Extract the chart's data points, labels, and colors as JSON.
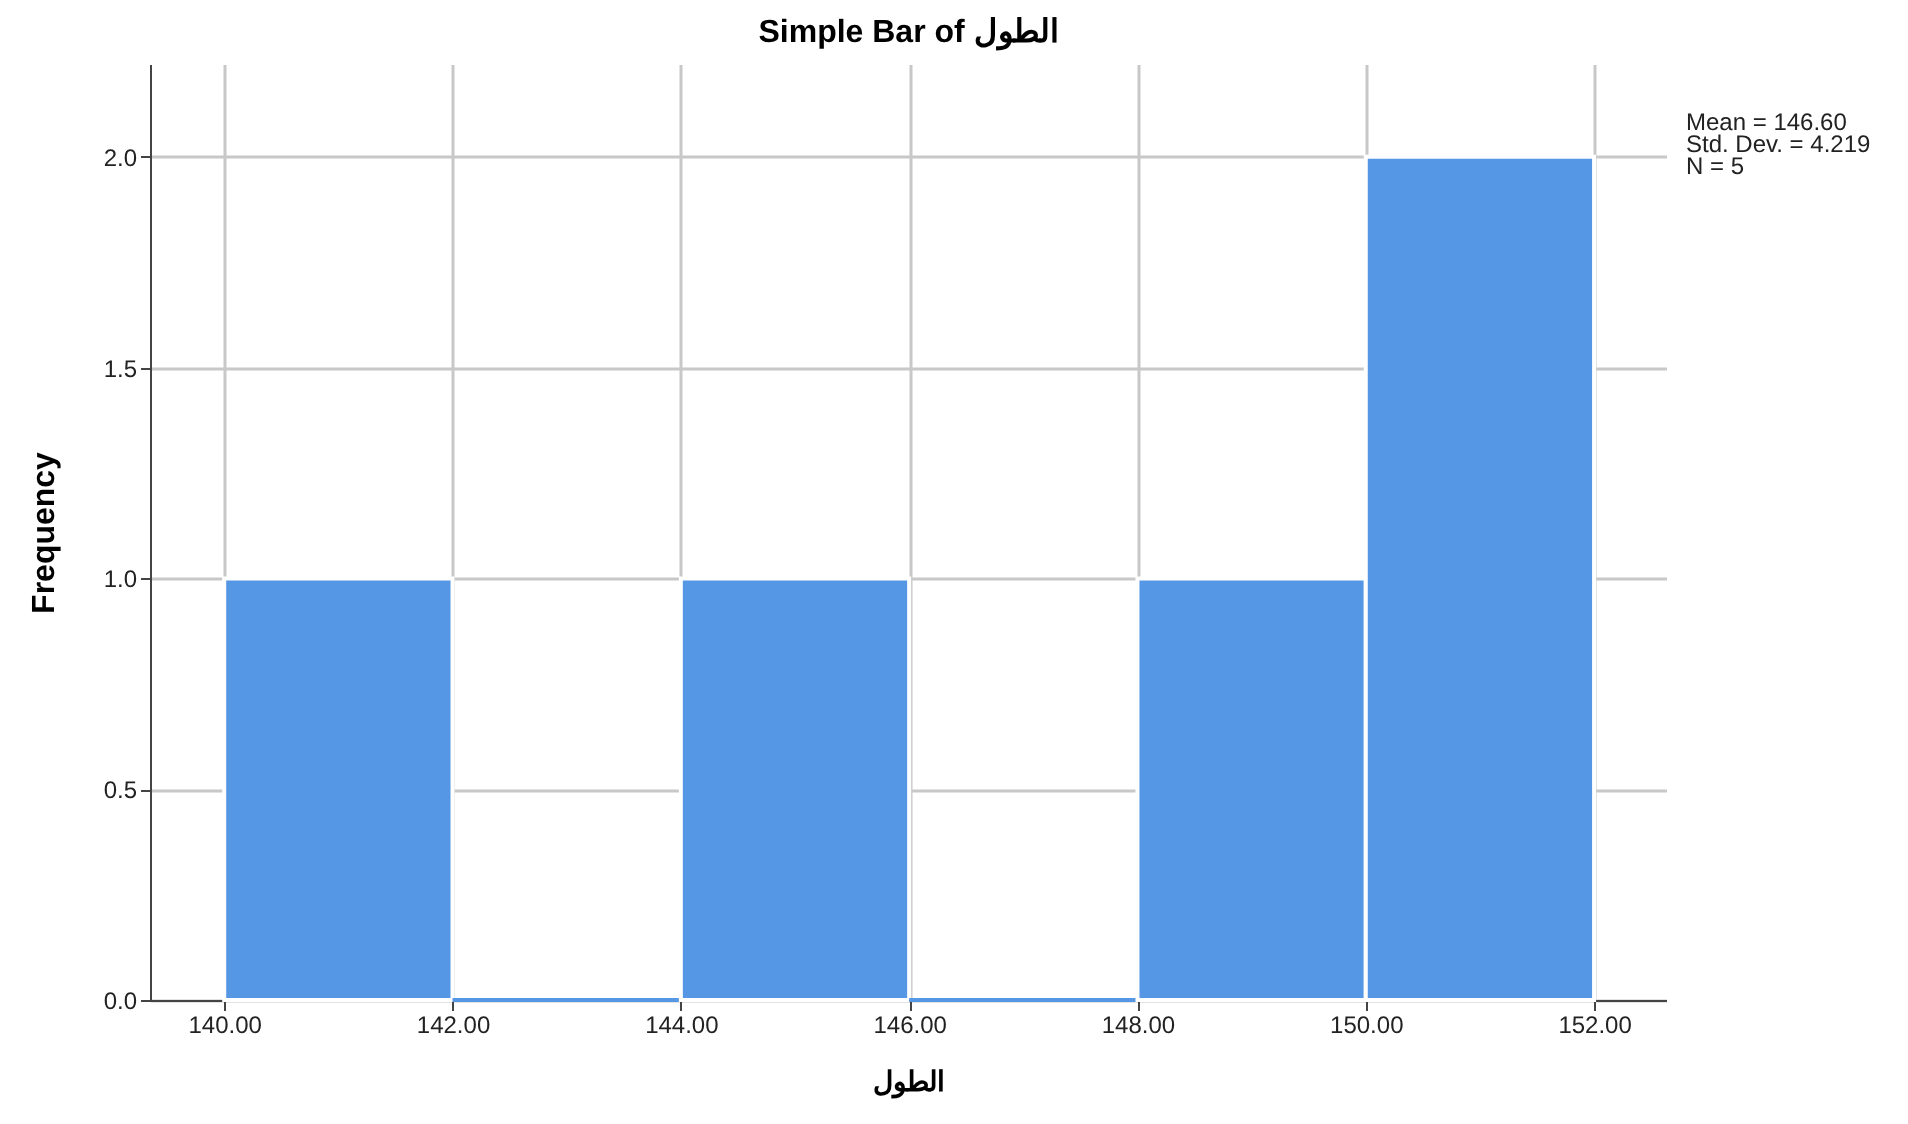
{
  "chart_data": {
    "type": "histogram",
    "title": "Simple Bar of الطول",
    "xlabel": "الطول",
    "ylabel": "Frequency",
    "bins": [
      140,
      142,
      144,
      146,
      148,
      150,
      152
    ],
    "values": [
      1,
      0,
      1,
      0,
      1,
      2
    ],
    "color": "#5597e4",
    "xlim": [
      139.35,
      152.63
    ],
    "ylim": [
      0,
      2.22
    ],
    "xticks": [
      {
        "value": 140,
        "label": "140.00"
      },
      {
        "value": 142,
        "label": "142.00"
      },
      {
        "value": 144,
        "label": "144.00"
      },
      {
        "value": 146,
        "label": "146.00"
      },
      {
        "value": 148,
        "label": "148.00"
      },
      {
        "value": 150,
        "label": "150.00"
      },
      {
        "value": 152,
        "label": "152.00"
      }
    ],
    "yticks": [
      {
        "value": 0,
        "label": "0.0"
      },
      {
        "value": 0.5,
        "label": "0.5"
      },
      {
        "value": 1,
        "label": "1.0"
      },
      {
        "value": 1.5,
        "label": "1.5"
      },
      {
        "value": 2,
        "label": "2.0"
      }
    ],
    "grid": true,
    "annotations": [
      "Mean = 146.60",
      "Std. Dev. = 4.219",
      "N = 5"
    ]
  }
}
